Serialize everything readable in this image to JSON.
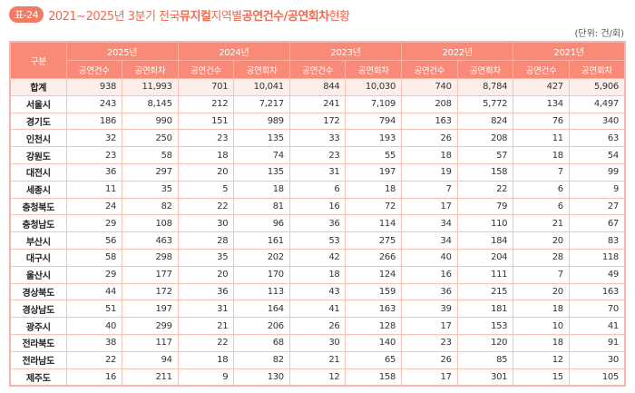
{
  "title": {
    "badge": "표-24",
    "part1": "2021~2025년 3분기 전국 ",
    "bold1": "뮤지컬",
    "part2": " 지역별 ",
    "bold2": "공연건수/공연회차",
    "part3": " 현황"
  },
  "unit": "(단위: 건/회)",
  "table": {
    "corner": "구분",
    "years": [
      "2025년",
      "2024년",
      "2023년",
      "2022년",
      "2021년"
    ],
    "subheaders": [
      "공연건수",
      "공연회차"
    ],
    "rows": [
      {
        "label": "합계",
        "values": [
          "938",
          "11,993",
          "701",
          "10,041",
          "844",
          "10,030",
          "740",
          "8,784",
          "427",
          "5,906"
        ]
      },
      {
        "label": "서울시",
        "values": [
          "243",
          "8,145",
          "212",
          "7,217",
          "241",
          "7,109",
          "208",
          "5,772",
          "134",
          "4,497"
        ]
      },
      {
        "label": "경기도",
        "values": [
          "186",
          "990",
          "151",
          "989",
          "172",
          "794",
          "163",
          "824",
          "76",
          "340"
        ]
      },
      {
        "label": "인천시",
        "values": [
          "32",
          "250",
          "23",
          "135",
          "33",
          "193",
          "26",
          "208",
          "11",
          "63"
        ]
      },
      {
        "label": "강원도",
        "values": [
          "23",
          "58",
          "18",
          "74",
          "23",
          "55",
          "18",
          "57",
          "18",
          "54"
        ]
      },
      {
        "label": "대전시",
        "values": [
          "36",
          "297",
          "20",
          "135",
          "31",
          "197",
          "19",
          "158",
          "7",
          "99"
        ]
      },
      {
        "label": "세종시",
        "values": [
          "11",
          "35",
          "5",
          "18",
          "6",
          "18",
          "7",
          "22",
          "6",
          "9"
        ]
      },
      {
        "label": "충청북도",
        "values": [
          "24",
          "82",
          "22",
          "81",
          "16",
          "72",
          "17",
          "79",
          "6",
          "27"
        ]
      },
      {
        "label": "충청남도",
        "values": [
          "29",
          "108",
          "30",
          "96",
          "36",
          "114",
          "34",
          "110",
          "21",
          "67"
        ]
      },
      {
        "label": "부산시",
        "values": [
          "56",
          "463",
          "28",
          "161",
          "53",
          "275",
          "34",
          "184",
          "20",
          "83"
        ]
      },
      {
        "label": "대구시",
        "values": [
          "58",
          "298",
          "35",
          "202",
          "42",
          "266",
          "40",
          "204",
          "28",
          "118"
        ]
      },
      {
        "label": "울산시",
        "values": [
          "29",
          "177",
          "20",
          "170",
          "18",
          "124",
          "16",
          "111",
          "7",
          "49"
        ]
      },
      {
        "label": "경상북도",
        "values": [
          "44",
          "172",
          "36",
          "113",
          "43",
          "159",
          "36",
          "215",
          "20",
          "163"
        ]
      },
      {
        "label": "경상남도",
        "values": [
          "51",
          "197",
          "31",
          "164",
          "41",
          "163",
          "39",
          "181",
          "18",
          "70"
        ]
      },
      {
        "label": "광주시",
        "values": [
          "40",
          "299",
          "21",
          "206",
          "26",
          "128",
          "17",
          "153",
          "10",
          "41"
        ]
      },
      {
        "label": "전라북도",
        "values": [
          "38",
          "117",
          "22",
          "68",
          "30",
          "140",
          "23",
          "120",
          "18",
          "91"
        ]
      },
      {
        "label": "전라남도",
        "values": [
          "22",
          "94",
          "18",
          "82",
          "21",
          "65",
          "26",
          "85",
          "12",
          "30"
        ]
      },
      {
        "label": "제주도",
        "values": [
          "16",
          "211",
          "9",
          "130",
          "12",
          "158",
          "17",
          "301",
          "15",
          "105"
        ]
      }
    ]
  }
}
